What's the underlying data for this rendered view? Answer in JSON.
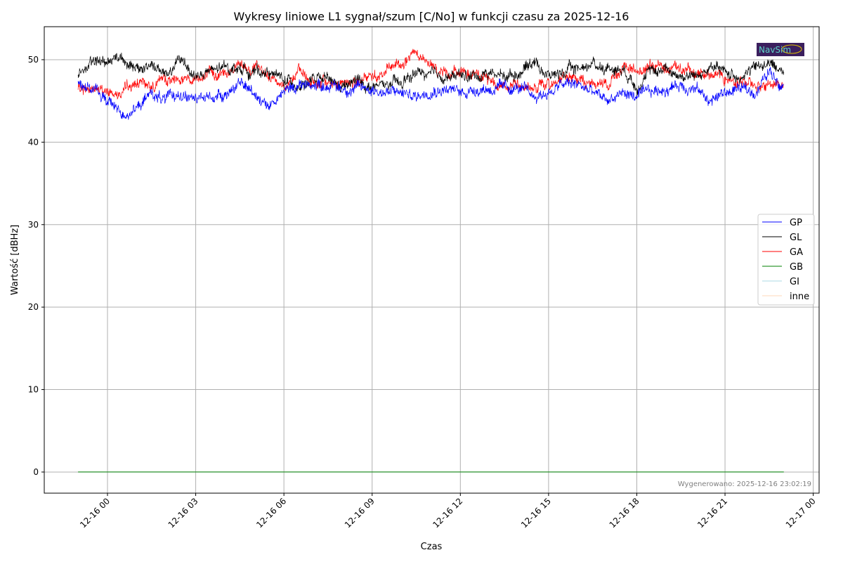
{
  "chart_data": {
    "type": "line",
    "title": "Wykresy liniowe L1 sygnał/szum [C/No] w funkcji czasu za 2025-12-16",
    "xlabel": "Czas",
    "ylabel": "Wartość [dBHz]",
    "x_unit": "hours relative to 2025-12-16 00:00",
    "xlim": [
      -2.15,
      24.2
    ],
    "ylim": [
      -2.56,
      54.0
    ],
    "grid": true,
    "legend_placement": "center-right",
    "x_ticks": [
      {
        "value": 0,
        "label": "12-16 00"
      },
      {
        "value": 3,
        "label": "12-16 03"
      },
      {
        "value": 6,
        "label": "12-16 06"
      },
      {
        "value": 9,
        "label": "12-16 09"
      },
      {
        "value": 12,
        "label": "12-16 12"
      },
      {
        "value": 15,
        "label": "12-16 15"
      },
      {
        "value": 18,
        "label": "12-16 18"
      },
      {
        "value": 21,
        "label": "12-16 21"
      },
      {
        "value": 24,
        "label": "12-17 00"
      }
    ],
    "y_ticks": [
      {
        "value": 0,
        "label": "0"
      },
      {
        "value": 10,
        "label": "10"
      },
      {
        "value": 20,
        "label": "20"
      },
      {
        "value": 30,
        "label": "30"
      },
      {
        "value": 40,
        "label": "40"
      },
      {
        "value": 50,
        "label": "50"
      }
    ],
    "x": [
      -1,
      -0.5,
      0,
      0.5,
      1,
      1.5,
      2,
      2.5,
      3,
      3.5,
      4,
      4.5,
      5,
      5.5,
      6,
      6.5,
      7,
      7.5,
      8,
      8.5,
      9,
      9.5,
      10,
      10.5,
      11,
      11.5,
      12,
      12.5,
      13,
      13.5,
      14,
      14.5,
      15,
      15.5,
      16,
      16.5,
      17,
      17.5,
      18,
      18.5,
      19,
      19.5,
      20,
      20.5,
      21,
      21.5,
      22,
      22.5,
      23
    ],
    "series": [
      {
        "name": "GP",
        "color": "#0000ff",
        "values": [
          47.5,
          46.5,
          45,
          43.5,
          44,
          46,
          45,
          46,
          45,
          45.5,
          46,
          47,
          46,
          44.5,
          46,
          47,
          47,
          47,
          46.5,
          46.5,
          46.5,
          46,
          46,
          45.5,
          46.5,
          46.5,
          46,
          46.5,
          46.5,
          46.5,
          46.5,
          45.5,
          46,
          47,
          47,
          46,
          45,
          46,
          45.5,
          46,
          46.5,
          47,
          46.5,
          45,
          46,
          46.5,
          46,
          48.5,
          47
        ]
      },
      {
        "name": "GL",
        "color": "#000000",
        "values": [
          48.5,
          49.5,
          50,
          50.5,
          48.5,
          49.5,
          48,
          50,
          48,
          48.5,
          49,
          49,
          48.5,
          48.5,
          47.5,
          47,
          47.5,
          47.5,
          46.5,
          47.5,
          46.5,
          47,
          47,
          48.5,
          48,
          48,
          48,
          48,
          48.5,
          48,
          48.5,
          50,
          48,
          48.5,
          49,
          49.5,
          49,
          49,
          47,
          48.5,
          49,
          48,
          48,
          49,
          48.5,
          48,
          49,
          49.5,
          48.5
        ]
      },
      {
        "name": "GA",
        "color": "#ff0000",
        "values": [
          46.5,
          46.5,
          46,
          46,
          47,
          47,
          47.5,
          48,
          48,
          48,
          48.5,
          49.5,
          49,
          48,
          47,
          48.5,
          47,
          47,
          47.5,
          47,
          48,
          48.5,
          49.5,
          50.5,
          49,
          48.5,
          48.5,
          48,
          47.5,
          47,
          47,
          46.5,
          47,
          48,
          47.5,
          47,
          47,
          49,
          48.5,
          49,
          49.5,
          49,
          48,
          48.5,
          48,
          47.5,
          47,
          47,
          47
        ]
      },
      {
        "name": "GB",
        "color": "#008000",
        "values": [
          0,
          0,
          0,
          0,
          0,
          0,
          0,
          0,
          0,
          0,
          0,
          0,
          0,
          0,
          0,
          0,
          0,
          0,
          0,
          0,
          0,
          0,
          0,
          0,
          0,
          0,
          0,
          0,
          0,
          0,
          0,
          0,
          0,
          0,
          0,
          0,
          0,
          0,
          0,
          0,
          0,
          0,
          0,
          0,
          0,
          0,
          0,
          0,
          0
        ]
      },
      {
        "name": "GI",
        "color": "#add8e6",
        "values": [
          0,
          0,
          0,
          0,
          0,
          0,
          0,
          0,
          0,
          0,
          0,
          0,
          0,
          0,
          0,
          0,
          0,
          0,
          0,
          0,
          0,
          0,
          0,
          0,
          0,
          0,
          0,
          0,
          0,
          0,
          0,
          0,
          0,
          0,
          0,
          0,
          0,
          0,
          0,
          0,
          0,
          0,
          0,
          0,
          0,
          0,
          0,
          0,
          0
        ]
      },
      {
        "name": "inne",
        "color": "#ffdab9",
        "values": [
          0,
          0,
          0,
          0,
          0,
          0,
          0,
          0,
          0,
          0,
          0,
          0,
          0,
          0,
          0,
          0,
          0,
          0,
          0,
          0,
          0,
          0,
          0,
          0,
          0,
          0,
          0,
          0,
          0,
          0,
          0,
          0,
          0,
          0,
          0,
          0,
          0,
          0,
          0,
          0,
          0,
          0,
          0,
          0,
          0,
          0,
          0,
          0,
          0
        ]
      }
    ],
    "annotations": {
      "generated": "Wygenerowano: 2025-12-16 23:02:19",
      "logo": "NavSim"
    }
  }
}
